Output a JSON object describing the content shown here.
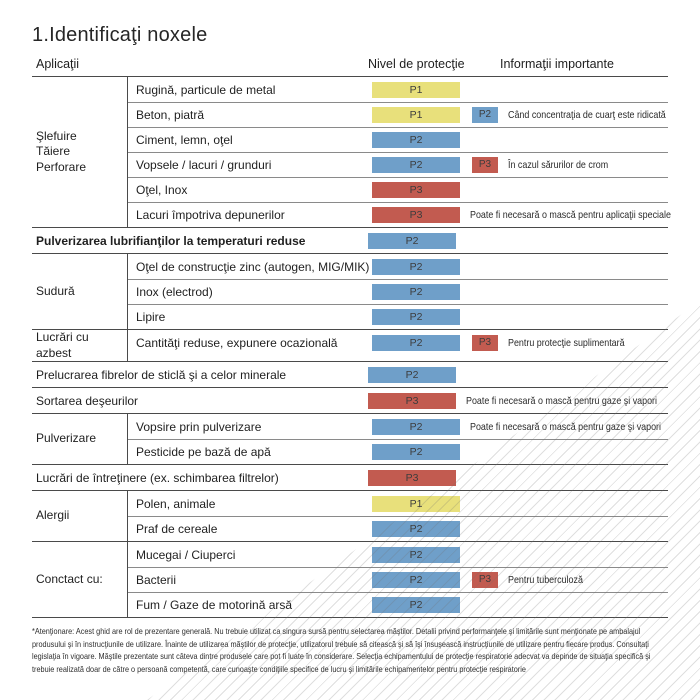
{
  "page": {
    "title": "1.Identificaţi noxele",
    "header": {
      "applications": "Aplicaţii",
      "protection": "Nivel de protecţie",
      "info": "Informaţii importante"
    },
    "colors": {
      "p1": "#e8e07b",
      "p2": "#6f9fc9",
      "p3": "#c25b50"
    },
    "footnote": "*Atenţionare: Acest ghid are rol de prezentare generală. Nu trebuie utilizat ca singura sursă pentru selectarea măştilor. Detalii privind performanţele şi limitările sunt menţionate pe ambalajul produsului şi în instrucţiunile de utilizare. Înainte de utilizarea măştilor de protecţie, utilizatorul trebuie să citească şi să îşi însuşească instrucţiunile de utilizare pentru fiecare produs. Consultaţi legislaţia în vigoare. Măştile prezentate sunt câteva dintre produsele care pot fi luate în considerare. Selecţia echipamentului de protecţie respiratorie adecvat va depinde de situaţia specifică şi trebuie realizată doar de către o persoană competentă, care cunoaşte condiţiile specifice de lucru şi limitările echipamentelor pentru protecţie respiratorie"
  },
  "table": {
    "groups": [
      {
        "category": "Şlefuire\nTăiere\nPerforare",
        "rows": [
          {
            "item": "Rugină, particule de metal",
            "level": "P1"
          },
          {
            "item": "Beton, piatră",
            "level": "P1",
            "extra": "P2",
            "note": "Când concentraţia de cuarţ este ridicată"
          },
          {
            "item": "Ciment, lemn, oţel",
            "level": "P2"
          },
          {
            "item": "Vopsele / lacuri / grunduri",
            "level": "P2",
            "extra": "P3",
            "note": "În cazul sărurilor de crom"
          },
          {
            "item": "Oţel, Inox",
            "level": "P3"
          },
          {
            "item": "Lacuri împotriva depunerilor",
            "level": "P3",
            "note": "Poate fi necesară o mască pentru aplicaţii speciale"
          }
        ]
      },
      {
        "rows": [
          {
            "item": "Pulverizarea lubrifianţilor la temperaturi reduse",
            "level": "P2"
          }
        ]
      },
      {
        "category": "Sudură",
        "rows": [
          {
            "item": "Oţel de construcţie zinc (autogen, MIG/MIK)",
            "level": "P2"
          },
          {
            "item": "Inox (electrod)",
            "level": "P2"
          },
          {
            "item": "Lipire",
            "level": "P2"
          }
        ]
      },
      {
        "category": "Lucrări cu azbest",
        "rows": [
          {
            "item": "Cantităţi reduse, expunere ocazională",
            "level": "P2",
            "extra": "P3",
            "note": "Pentru protecţie suplimentară"
          }
        ]
      },
      {
        "rows": [
          {
            "item": "Prelucrarea fibrelor de sticlă şi a celor minerale",
            "level": "P2"
          }
        ]
      },
      {
        "rows": [
          {
            "item": "Sortarea deşeurilor",
            "level": "P3",
            "note": "Poate fi necesară o mască pentru gaze şi vapori"
          }
        ]
      },
      {
        "category": "Pulverizare",
        "rows": [
          {
            "item": "Vopsire prin pulverizare",
            "level": "P2",
            "note": "Poate fi necesară o mască pentru gaze şi vapori"
          },
          {
            "item": "Pesticide pe bază de apă",
            "level": "P2"
          }
        ]
      },
      {
        "rows": [
          {
            "item": "Lucrări de întreţinere (ex. schimbarea filtrelor)",
            "level": "P3"
          }
        ]
      },
      {
        "category": "Alergii",
        "rows": [
          {
            "item": "Polen, animale",
            "level": "P1"
          },
          {
            "item": "Praf de cereale",
            "level": "P2"
          }
        ]
      },
      {
        "category": "Conctact cu:",
        "rows": [
          {
            "item": "Mucegai / Ciuperci",
            "level": "P2"
          },
          {
            "item": "Bacterii",
            "level": "P2",
            "extra": "P3",
            "note": "Pentru tuberculoză"
          },
          {
            "item": "Fum / Gaze de motorină arsă",
            "level": "P2"
          }
        ]
      }
    ]
  }
}
